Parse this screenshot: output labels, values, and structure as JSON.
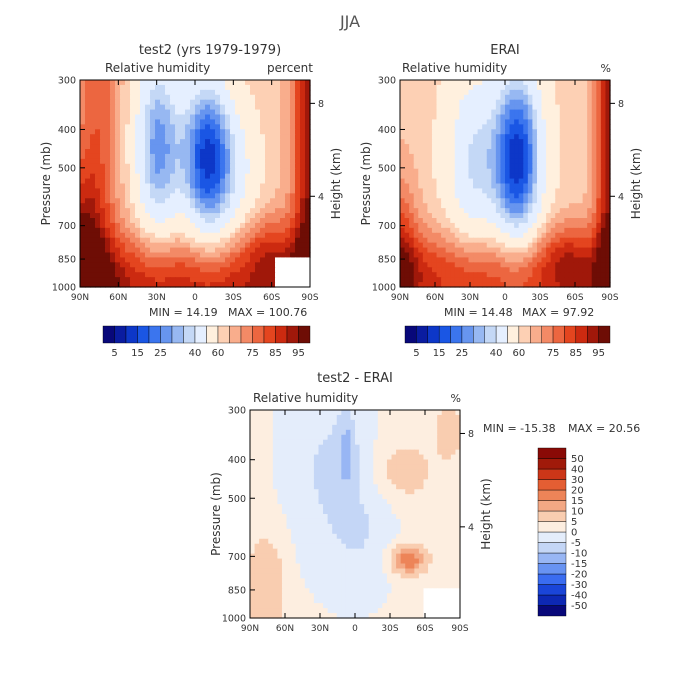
{
  "figure": {
    "title": "JJA"
  },
  "colors": {
    "full": [
      "#08087a",
      "#0a1ca0",
      "#0d37c8",
      "#1a56e4",
      "#3b75ee",
      "#6795ef",
      "#97b8f2",
      "#c4d8f6",
      "#e5efff",
      "#fff0de",
      "#fdd0b4",
      "#f9ad8c",
      "#f38a66",
      "#ec6640",
      "#e4451f",
      "#cc2a10",
      "#a0180a",
      "#6e0d05"
    ],
    "diff": [
      "#08087a",
      "#0d28b4",
      "#1a45d8",
      "#3a6cf0",
      "#6893f2",
      "#98b6f4",
      "#c4d6f6",
      "#e4edfb",
      "#fdeee0",
      "#f9cdb0",
      "#f3a884",
      "#ed8458",
      "#e45e33",
      "#cc3618",
      "#a01a0a",
      "#8a0a06"
    ]
  },
  "chart_data": [
    {
      "type": "heatmap",
      "title": "test2 (yrs 1979-1979)",
      "variable": "Relative humidity",
      "units": "percent",
      "xlabel": "",
      "ylabel": "Pressure (mb)",
      "y2label": "Height (km)",
      "x_ticks": [
        "90N",
        "60N",
        "30N",
        "0",
        "30S",
        "60S",
        "90S"
      ],
      "y_ticks": [
        "300",
        "400",
        "500",
        "700",
        "850",
        "1000"
      ],
      "y2_ticks": [
        "8",
        "4"
      ],
      "min_text": "MIN = 14.19",
      "max_text": "MAX = 100.76",
      "min": 14.19,
      "max": 100.76,
      "colorbar_labels": [
        "5",
        "15",
        "25",
        "40",
        "60",
        "75",
        "85",
        "95"
      ],
      "colorbar_levels": [
        5,
        10,
        15,
        20,
        25,
        30,
        35,
        40,
        50,
        60,
        65,
        70,
        75,
        80,
        85,
        90,
        95
      ]
    },
    {
      "type": "heatmap",
      "title": "ERAI",
      "variable": "Relative humidity",
      "units": "%",
      "xlabel": "",
      "ylabel": "Pressure (mb)",
      "y2label": "Height (km)",
      "x_ticks": [
        "90N",
        "60N",
        "30N",
        "0",
        "30S",
        "60S",
        "90S"
      ],
      "y_ticks": [
        "300",
        "400",
        "500",
        "700",
        "850",
        "1000"
      ],
      "y2_ticks": [
        "8",
        "4"
      ],
      "min_text": "MIN = 14.48",
      "max_text": "MAX = 97.92",
      "min": 14.48,
      "max": 97.92,
      "colorbar_labels": [
        "5",
        "15",
        "25",
        "40",
        "60",
        "75",
        "85",
        "95"
      ],
      "colorbar_levels": [
        5,
        10,
        15,
        20,
        25,
        30,
        35,
        40,
        50,
        60,
        65,
        70,
        75,
        80,
        85,
        90,
        95
      ]
    },
    {
      "type": "heatmap",
      "title": "test2 - ERAI",
      "variable": "Relative humidity",
      "units": "%",
      "xlabel": "",
      "ylabel": "Pressure (mb)",
      "y2label": "Height (km)",
      "x_ticks": [
        "90N",
        "60N",
        "30N",
        "0",
        "30S",
        "60S",
        "90S"
      ],
      "y_ticks": [
        "300",
        "400",
        "500",
        "700",
        "850",
        "1000"
      ],
      "y2_ticks": [
        "8",
        "4"
      ],
      "min_text": "MIN = -15.38",
      "max_text": "MAX = 20.56",
      "min": -15.38,
      "max": 20.56,
      "colorbar_labels": [
        "50",
        "40",
        "30",
        "20",
        "15",
        "10",
        "5",
        "0",
        "-5",
        "-10",
        "-15",
        "-20",
        "-30",
        "-40",
        "-50"
      ],
      "colorbar_levels": [
        -50,
        -40,
        -30,
        -20,
        -15,
        -10,
        -5,
        0,
        5,
        10,
        15,
        20,
        30,
        40,
        50
      ]
    }
  ]
}
